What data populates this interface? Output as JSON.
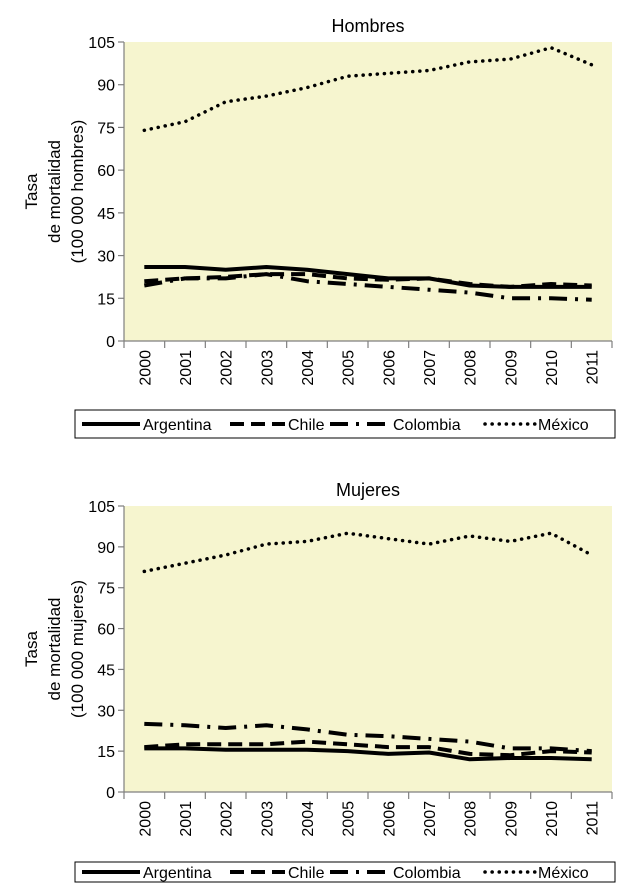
{
  "chart_data": [
    {
      "type": "line",
      "title": "Hombres",
      "ylabel": [
        "Tasa",
        "de mortalidad",
        "(100 000 hombres)"
      ],
      "xlabel": "",
      "ylim": [
        0,
        105
      ],
      "yticks": [
        0,
        15,
        30,
        45,
        60,
        75,
        90,
        105
      ],
      "x": [
        "2000",
        "2001",
        "2002",
        "2003",
        "2004",
        "2005",
        "2006",
        "2007",
        "2008",
        "2009",
        "2010",
        "2011"
      ],
      "grid": false,
      "plot_background": "#f6f5cf",
      "legend": "bottom",
      "series": [
        {
          "name": "Argentina",
          "style": "solid",
          "values": [
            26,
            26,
            25,
            26,
            25,
            23.5,
            22,
            22,
            19.5,
            19,
            19,
            19
          ]
        },
        {
          "name": "Chile",
          "style": "dashed",
          "values": [
            21,
            22,
            22.5,
            23.5,
            23.5,
            22,
            21.5,
            22,
            20,
            19,
            20,
            19.5
          ]
        },
        {
          "name": "Colombia",
          "style": "dash-dot",
          "values": [
            19.5,
            22,
            22,
            23.5,
            21,
            20,
            19,
            18,
            17,
            15,
            15,
            14.5
          ]
        },
        {
          "name": "México",
          "style": "dotted",
          "values": [
            74,
            77,
            84,
            86,
            89,
            93,
            94,
            95,
            98,
            99,
            103,
            97
          ]
        }
      ]
    },
    {
      "type": "line",
      "title": "Mujeres",
      "ylabel": [
        "Tasa",
        "de mortalidad",
        "(100 000 mujeres)"
      ],
      "xlabel": "",
      "ylim": [
        0,
        105
      ],
      "yticks": [
        0,
        15,
        30,
        45,
        60,
        75,
        90,
        105
      ],
      "x": [
        "2000",
        "2001",
        "2002",
        "2003",
        "2004",
        "2005",
        "2006",
        "2007",
        "2008",
        "2009",
        "2010",
        "2011"
      ],
      "grid": false,
      "plot_background": "#f6f5cf",
      "legend": "bottom",
      "series": [
        {
          "name": "Argentina",
          "style": "solid",
          "values": [
            16,
            16,
            15.5,
            15.5,
            15.5,
            15,
            14,
            14.5,
            12,
            12.5,
            12.5,
            12
          ]
        },
        {
          "name": "Chile",
          "style": "dashed",
          "values": [
            16.5,
            17.5,
            17.5,
            17.5,
            18.5,
            17.5,
            16.5,
            16.5,
            14,
            13.5,
            15,
            14.5
          ]
        },
        {
          "name": "Colombia",
          "style": "dash-dot",
          "values": [
            25,
            24.5,
            23.5,
            24.5,
            23,
            21,
            20.5,
            19.5,
            18.5,
            16,
            16,
            15
          ]
        },
        {
          "name": "México",
          "style": "dotted",
          "values": [
            81,
            84,
            87,
            91,
            92,
            95,
            93,
            91,
            94,
            92,
            95,
            87
          ]
        }
      ]
    }
  ]
}
